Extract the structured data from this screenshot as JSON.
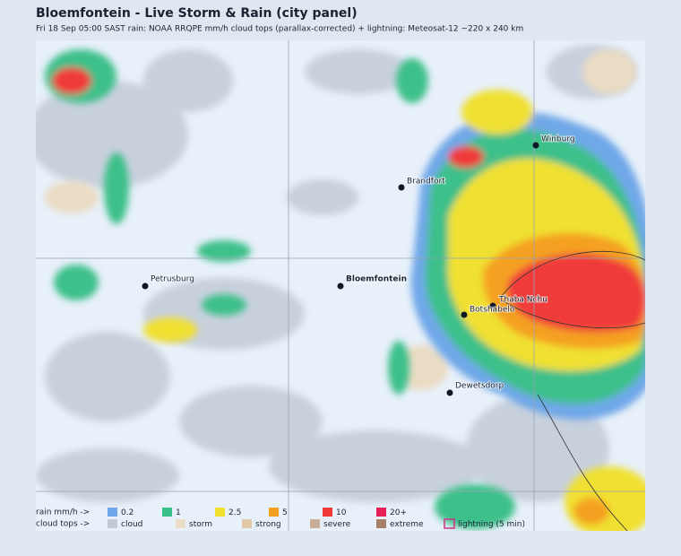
{
  "header": {
    "title": "Bloemfontein - Live Storm & Rain (city panel)",
    "subtitle": "Fri 18 Sep 05:00 SAST   rain: NOAA RRQPE mm/h   cloud tops (parallax-corrected) + lightning: Meteosat-12   ~220 x 240 km"
  },
  "cities": [
    {
      "name": "Winburg"
    },
    {
      "name": "Brandfort"
    },
    {
      "name": "Bloemfontein"
    },
    {
      "name": "Petrusburg"
    },
    {
      "name": "Thaba Nchu"
    },
    {
      "name": "Botshabelo"
    },
    {
      "name": "Dewetsdorp"
    }
  ],
  "legend": {
    "rain": {
      "label": "rain mm/h ->",
      "items": [
        {
          "label": "0.2",
          "color": "#6fa8e8"
        },
        {
          "label": "1",
          "color": "#3cc08a"
        },
        {
          "label": "2.5",
          "color": "#f0e030"
        },
        {
          "label": "5",
          "color": "#f4a020"
        },
        {
          "label": "10",
          "color": "#f03a3a"
        },
        {
          "label": "20+",
          "color": "#e8205a"
        }
      ]
    },
    "cloud": {
      "label": "cloud tops ->",
      "items": [
        {
          "label": "cloud",
          "color": "#c4cbd6"
        },
        {
          "label": "storm",
          "color": "#eadcc4"
        },
        {
          "label": "strong",
          "color": "#e2caa8"
        },
        {
          "label": "severe",
          "color": "#c8ad98"
        },
        {
          "label": "extreme",
          "color": "#a88068"
        },
        {
          "label": "lightning (5 min)",
          "color": "#d0308a"
        }
      ]
    }
  }
}
